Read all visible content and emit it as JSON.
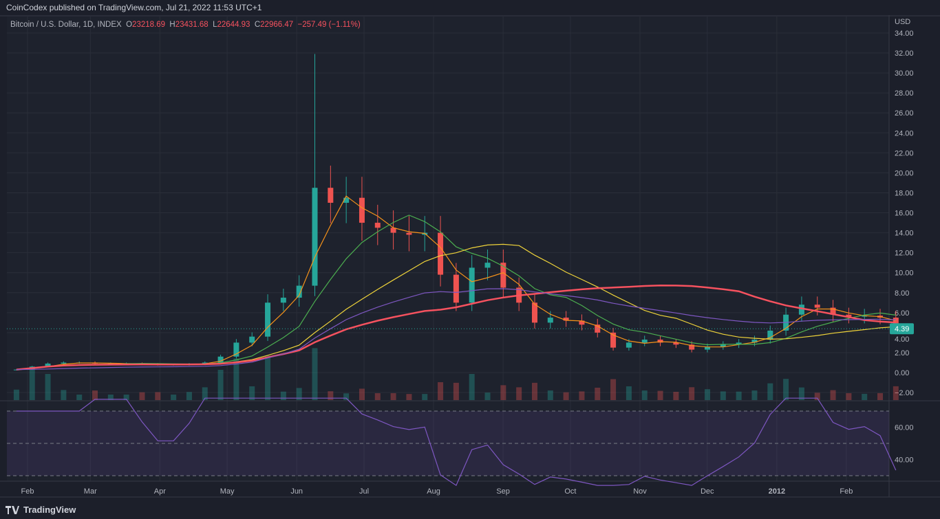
{
  "header": {
    "published": "CoinCodex published on TradingView.com, Jul 21, 2022 11:53 UTC+1"
  },
  "legend": {
    "symbol": "Bitcoin / U.S. Dollar, 1D, INDEX",
    "o_label": "O",
    "open": "23218.69",
    "h_label": "H",
    "high": "23431.68",
    "l_label": "L",
    "low": "22644.93",
    "c_label": "C",
    "close": "22966.47",
    "change": "−257.49 (−1.11%)"
  },
  "footer": {
    "brand": "TradingView",
    "logo": "tradingview-logo-icon"
  },
  "colors": {
    "up": "#26a69a",
    "down": "#ef5350",
    "ma_fast": "#f7931a",
    "ma_mid": "#4caf50",
    "ma_slow": "#f0d43a",
    "ma_long": "#f7525f",
    "ema_long": "#7e57c2",
    "rsi": "#7e57c2",
    "price_label": "#26a69a"
  },
  "chart_data": {
    "type": "candlestick",
    "currency_label": "USD",
    "last_price_label": "4.39",
    "peak_high": 31.9,
    "ylim": [
      -2,
      34
    ],
    "y_ticks": [
      "34.00",
      "32.00",
      "30.00",
      "28.00",
      "26.00",
      "24.00",
      "22.00",
      "20.00",
      "18.00",
      "16.00",
      "14.00",
      "12.00",
      "10.00",
      "8.00",
      "6.00",
      "4.00",
      "2.00",
      "0.00",
      "−2.00"
    ],
    "rsi_ticks": [
      "60.00",
      "40.00"
    ],
    "rsi_levels": [
      70,
      50,
      30
    ],
    "x_ticks": [
      {
        "date": "2011-02-01",
        "label": "Feb"
      },
      {
        "date": "2011-03-01",
        "label": "Mar"
      },
      {
        "date": "2011-04-01",
        "label": "Apr"
      },
      {
        "date": "2011-05-01",
        "label": "May"
      },
      {
        "date": "2011-06-01",
        "label": "Jun"
      },
      {
        "date": "2011-07-01",
        "label": "Jul"
      },
      {
        "date": "2011-08-01",
        "label": "Aug"
      },
      {
        "date": "2011-09-01",
        "label": "Sep"
      },
      {
        "date": "2011-10-01",
        "label": "Oct"
      },
      {
        "date": "2011-11-01",
        "label": "Nov"
      },
      {
        "date": "2011-12-01",
        "label": "Dec"
      },
      {
        "date": "2012-01-01",
        "label": "2012"
      },
      {
        "date": "2012-02-01",
        "label": "Feb"
      }
    ],
    "start_date": "2011-01-24",
    "interval_days": 7,
    "closes": [
      0.3,
      0.6,
      0.9,
      1.0,
      1.0,
      0.9,
      0.9,
      0.9,
      0.85,
      0.8,
      0.8,
      0.85,
      1.0,
      1.6,
      3.0,
      3.6,
      7.0,
      7.5,
      8.7,
      18.5,
      17.0,
      17.5,
      15.0,
      14.5,
      14.0,
      13.8,
      14.0,
      9.8,
      7.0,
      10.5,
      11.0,
      8.5,
      7.0,
      5.0,
      5.5,
      5.2,
      4.8,
      4.0,
      2.5,
      3.0,
      3.3,
      3.0,
      2.8,
      2.3,
      2.6,
      2.8,
      3.0,
      3.3,
      4.2,
      5.8,
      6.8,
      6.5,
      5.8,
      5.6,
      5.7,
      5.5,
      4.39
    ],
    "moving_averages": [
      {
        "color_key": "ma_fast",
        "period_weeks": 3
      },
      {
        "color_key": "ma_mid",
        "period_weeks": 7
      },
      {
        "color_key": "ma_slow",
        "period_weeks": 14
      },
      {
        "color_key": "ma_long",
        "period_weeks": 28
      },
      {
        "color_key": "ema_long",
        "period_weeks": 28
      }
    ]
  }
}
